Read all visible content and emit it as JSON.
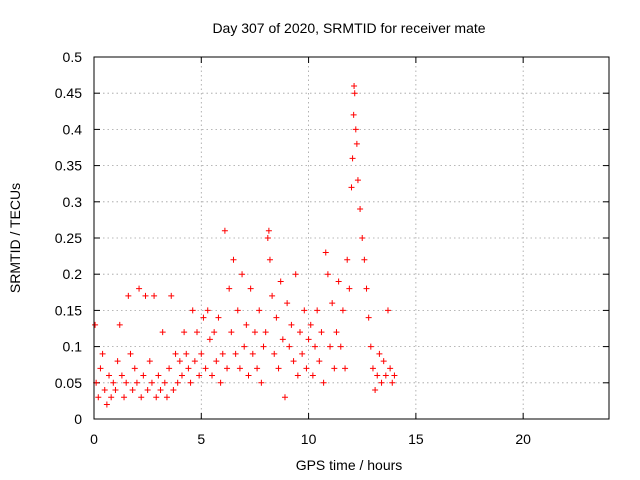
{
  "chart_data": {
    "type": "scatter",
    "title": "Day 307 of 2020, SRMTID for receiver mate",
    "xlabel": "GPS time / hours",
    "ylabel": "SRMTID / TECUs",
    "xlim": [
      0,
      24
    ],
    "ylim": [
      0,
      0.5
    ],
    "x_ticks": [
      0,
      5,
      10,
      15,
      20
    ],
    "x_tick_labels": [
      "0",
      "5",
      "10",
      "15",
      "20"
    ],
    "y_ticks": [
      0,
      0.05,
      0.1,
      0.15,
      0.2,
      0.25,
      0.3,
      0.35,
      0.4,
      0.45,
      0.5
    ],
    "y_tick_labels": [
      "0",
      "0.05",
      "0.1",
      "0.15",
      "0.2",
      "0.25",
      "0.3",
      "0.35",
      "0.4",
      "0.45",
      "0.5"
    ],
    "grid": true,
    "marker": "+",
    "color": "#ff0000",
    "series": [
      {
        "points": [
          [
            0.05,
            0.13
          ],
          [
            0.1,
            0.05
          ],
          [
            0.2,
            0.03
          ],
          [
            0.3,
            0.07
          ],
          [
            0.4,
            0.09
          ],
          [
            0.5,
            0.04
          ],
          [
            0.6,
            0.02
          ],
          [
            0.7,
            0.06
          ],
          [
            0.8,
            0.03
          ],
          [
            0.9,
            0.05
          ],
          [
            1.0,
            0.04
          ],
          [
            1.1,
            0.08
          ],
          [
            1.2,
            0.13
          ],
          [
            1.3,
            0.06
          ],
          [
            1.4,
            0.03
          ],
          [
            1.5,
            0.05
          ],
          [
            1.6,
            0.17
          ],
          [
            1.7,
            0.09
          ],
          [
            1.8,
            0.04
          ],
          [
            1.9,
            0.07
          ],
          [
            2.0,
            0.05
          ],
          [
            2.1,
            0.18
          ],
          [
            2.2,
            0.03
          ],
          [
            2.3,
            0.06
          ],
          [
            2.4,
            0.17
          ],
          [
            2.5,
            0.04
          ],
          [
            2.6,
            0.08
          ],
          [
            2.7,
            0.05
          ],
          [
            2.8,
            0.17
          ],
          [
            2.9,
            0.03
          ],
          [
            3.0,
            0.06
          ],
          [
            3.1,
            0.04
          ],
          [
            3.2,
            0.12
          ],
          [
            3.3,
            0.05
          ],
          [
            3.4,
            0.03
          ],
          [
            3.5,
            0.07
          ],
          [
            3.6,
            0.17
          ],
          [
            3.7,
            0.04
          ],
          [
            3.8,
            0.09
          ],
          [
            3.9,
            0.05
          ],
          [
            4.0,
            0.08
          ],
          [
            4.1,
            0.06
          ],
          [
            4.2,
            0.12
          ],
          [
            4.3,
            0.09
          ],
          [
            4.4,
            0.07
          ],
          [
            4.5,
            0.05
          ],
          [
            4.6,
            0.15
          ],
          [
            4.7,
            0.08
          ],
          [
            4.8,
            0.12
          ],
          [
            4.9,
            0.06
          ],
          [
            5.0,
            0.09
          ],
          [
            5.1,
            0.14
          ],
          [
            5.2,
            0.07
          ],
          [
            5.3,
            0.15
          ],
          [
            5.4,
            0.11
          ],
          [
            5.5,
            0.06
          ],
          [
            5.6,
            0.12
          ],
          [
            5.7,
            0.08
          ],
          [
            5.8,
            0.14
          ],
          [
            5.9,
            0.05
          ],
          [
            6.0,
            0.09
          ],
          [
            6.1,
            0.26
          ],
          [
            6.2,
            0.07
          ],
          [
            6.3,
            0.18
          ],
          [
            6.4,
            0.12
          ],
          [
            6.5,
            0.22
          ],
          [
            6.6,
            0.09
          ],
          [
            6.7,
            0.15
          ],
          [
            6.8,
            0.07
          ],
          [
            6.9,
            0.2
          ],
          [
            7.0,
            0.1
          ],
          [
            7.1,
            0.13
          ],
          [
            7.2,
            0.06
          ],
          [
            7.3,
            0.18
          ],
          [
            7.4,
            0.09
          ],
          [
            7.5,
            0.12
          ],
          [
            7.6,
            0.07
          ],
          [
            7.7,
            0.15
          ],
          [
            7.8,
            0.05
          ],
          [
            7.9,
            0.1
          ],
          [
            8.0,
            0.12
          ],
          [
            8.1,
            0.25
          ],
          [
            8.15,
            0.26
          ],
          [
            8.2,
            0.22
          ],
          [
            8.3,
            0.17
          ],
          [
            8.4,
            0.09
          ],
          [
            8.5,
            0.14
          ],
          [
            8.6,
            0.07
          ],
          [
            8.7,
            0.19
          ],
          [
            8.8,
            0.11
          ],
          [
            8.9,
            0.03
          ],
          [
            9.0,
            0.16
          ],
          [
            9.1,
            0.1
          ],
          [
            9.2,
            0.13
          ],
          [
            9.3,
            0.08
          ],
          [
            9.4,
            0.2
          ],
          [
            9.5,
            0.06
          ],
          [
            9.6,
            0.12
          ],
          [
            9.7,
            0.09
          ],
          [
            9.8,
            0.15
          ],
          [
            9.9,
            0.07
          ],
          [
            10.0,
            0.11
          ],
          [
            10.1,
            0.13
          ],
          [
            10.2,
            0.06
          ],
          [
            10.3,
            0.1
          ],
          [
            10.4,
            0.15
          ],
          [
            10.5,
            0.08
          ],
          [
            10.6,
            0.12
          ],
          [
            10.7,
            0.05
          ],
          [
            10.8,
            0.23
          ],
          [
            10.9,
            0.2
          ],
          [
            11.0,
            0.1
          ],
          [
            11.1,
            0.16
          ],
          [
            11.2,
            0.07
          ],
          [
            11.3,
            0.12
          ],
          [
            11.4,
            0.19
          ],
          [
            11.5,
            0.1
          ],
          [
            11.6,
            0.15
          ],
          [
            11.7,
            0.07
          ],
          [
            11.8,
            0.22
          ],
          [
            11.9,
            0.18
          ],
          [
            12.0,
            0.32
          ],
          [
            12.05,
            0.36
          ],
          [
            12.1,
            0.42
          ],
          [
            12.12,
            0.46
          ],
          [
            12.15,
            0.45
          ],
          [
            12.2,
            0.4
          ],
          [
            12.25,
            0.38
          ],
          [
            12.3,
            0.33
          ],
          [
            12.4,
            0.29
          ],
          [
            12.5,
            0.25
          ],
          [
            12.6,
            0.22
          ],
          [
            12.7,
            0.18
          ],
          [
            12.8,
            0.14
          ],
          [
            12.9,
            0.1
          ],
          [
            13.0,
            0.07
          ],
          [
            13.1,
            0.04
          ],
          [
            13.2,
            0.06
          ],
          [
            13.3,
            0.09
          ],
          [
            13.4,
            0.05
          ],
          [
            13.5,
            0.08
          ],
          [
            13.6,
            0.06
          ],
          [
            13.7,
            0.15
          ],
          [
            13.8,
            0.07
          ],
          [
            13.9,
            0.05
          ],
          [
            14.0,
            0.06
          ]
        ]
      }
    ]
  }
}
